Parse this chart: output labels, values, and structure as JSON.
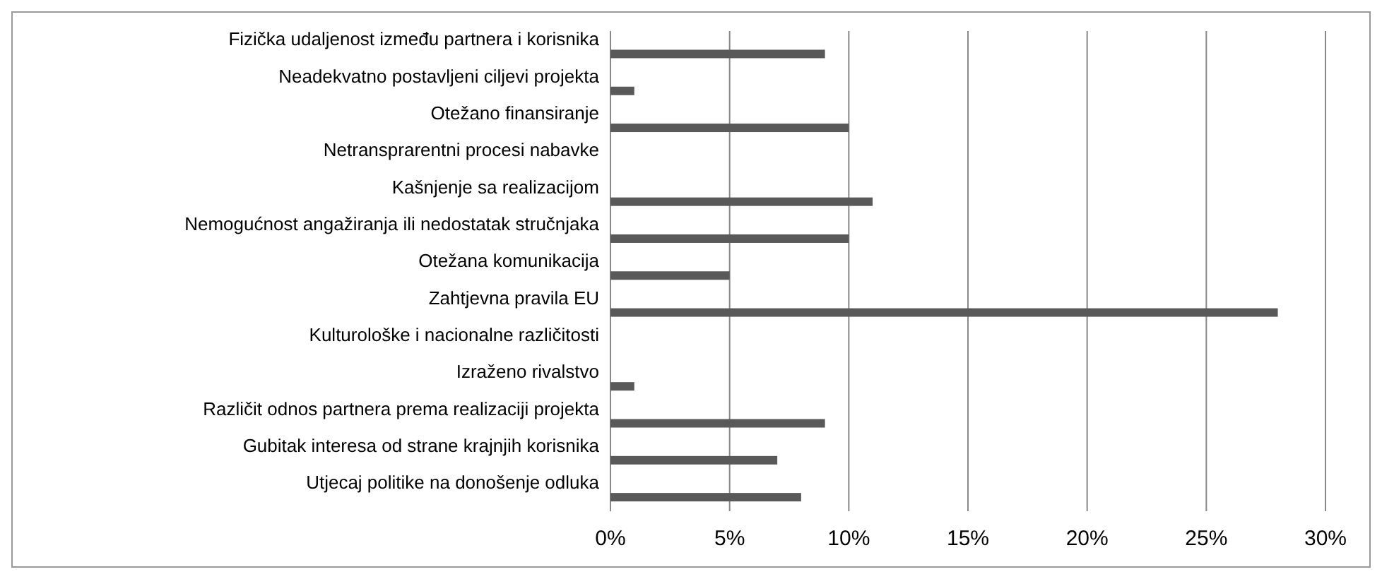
{
  "chart_data": {
    "type": "bar",
    "orientation": "horizontal",
    "categories": [
      "Fizička udaljenost između partnera i korisnika",
      "Neadekvatno postavljeni ciljevi projekta",
      "Otežano finansiranje",
      "Netransprarentni procesi nabavke",
      "Kašnjenje sa realizacijom",
      "Nemogućnost angažiranja ili nedostatak  stručnjaka",
      "Otežana komunikacija",
      "Zahtjevna pravila EU",
      "Kulturološke i nacionalne različitosti",
      "Izraženo rivalstvo",
      "Različit odnos partnera prema realizaciji projekta",
      "Gubitak interesa od strane krajnjih korisnika",
      "Utjecaj politike na donošenje odluka"
    ],
    "values": [
      9,
      1,
      10,
      0,
      11,
      10,
      5,
      28,
      0,
      1,
      9,
      7,
      8
    ],
    "color": "#595959",
    "xlim": [
      0,
      30
    ],
    "xticks": [
      {
        "value": 0,
        "label": "0%"
      },
      {
        "value": 5,
        "label": "5%"
      },
      {
        "value": 10,
        "label": "10%"
      },
      {
        "value": 15,
        "label": "15%"
      },
      {
        "value": 20,
        "label": "20%"
      },
      {
        "value": 25,
        "label": "25%"
      },
      {
        "value": 30,
        "label": "30%"
      }
    ],
    "grid": "x"
  }
}
